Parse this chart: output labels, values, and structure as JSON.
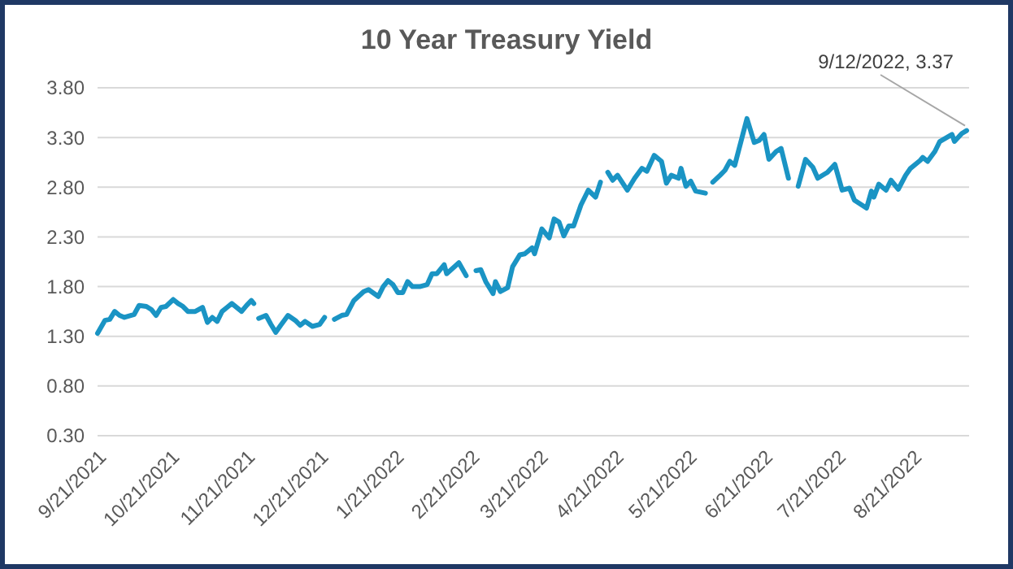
{
  "chart_data": {
    "type": "line",
    "title": "10 Year Treasury Yield",
    "x": [
      "2021-09-21",
      "2021-09-24",
      "2021-09-26",
      "2021-09-28",
      "2021-09-30",
      "2021-10-02",
      "2021-10-06",
      "2021-10-08",
      "2021-10-11",
      "2021-10-13",
      "2021-10-15",
      "2021-10-17",
      "2021-10-19",
      "2021-10-22",
      "2021-10-24",
      "2021-10-26",
      "2021-10-28",
      "2021-10-31",
      "2021-11-03",
      "2021-11-05",
      "2021-11-07",
      "2021-11-09",
      "2021-11-11",
      "2021-11-13",
      "2021-11-15",
      "2021-11-19",
      "2021-11-21",
      "2021-11-23",
      "2021-11-24",
      "2021-11-25",
      "2021-11-26",
      "2021-11-29",
      "2021-12-01",
      "2021-12-03",
      "2021-12-05",
      "2021-12-08",
      "2021-12-11",
      "2021-12-13",
      "2021-12-15",
      "2021-12-18",
      "2021-12-21",
      "2021-12-23",
      "2021-12-26",
      "2021-12-27",
      "2021-12-30",
      "2022-01-01",
      "2022-01-04",
      "2022-01-08",
      "2022-01-10",
      "2022-01-14",
      "2022-01-16",
      "2022-01-18",
      "2022-01-20",
      "2022-01-22",
      "2022-01-24",
      "2022-01-26",
      "2022-01-28",
      "2022-01-31",
      "2022-02-03",
      "2022-02-05",
      "2022-02-07",
      "2022-02-10",
      "2022-02-11",
      "2022-02-16",
      "2022-02-19",
      "2022-02-20",
      "2022-02-23",
      "2022-02-25",
      "2022-02-27",
      "2022-03-02",
      "2022-03-03",
      "2022-03-05",
      "2022-03-08",
      "2022-03-10",
      "2022-03-13",
      "2022-03-15",
      "2022-03-18",
      "2022-03-19",
      "2022-03-22",
      "2022-03-25",
      "2022-03-27",
      "2022-03-29",
      "2022-03-31",
      "2022-04-02",
      "2022-04-04",
      "2022-04-07",
      "2022-04-10",
      "2022-04-13",
      "2022-04-15",
      "2022-04-16",
      "2022-04-18",
      "2022-04-20",
      "2022-04-22",
      "2022-04-26",
      "2022-04-29",
      "2022-05-02",
      "2022-05-04",
      "2022-05-07",
      "2022-05-10",
      "2022-05-12",
      "2022-05-14",
      "2022-05-17",
      "2022-05-18",
      "2022-05-20",
      "2022-05-22",
      "2022-05-24",
      "2022-05-28",
      "2022-05-29",
      "2022-05-31",
      "2022-06-03",
      "2022-06-05",
      "2022-06-07",
      "2022-06-09",
      "2022-06-14",
      "2022-06-17",
      "2022-06-19",
      "2022-06-21",
      "2022-06-23",
      "2022-06-26",
      "2022-06-28",
      "2022-07-01",
      "2022-07-02",
      "2022-07-05",
      "2022-07-08",
      "2022-07-11",
      "2022-07-13",
      "2022-07-17",
      "2022-07-20",
      "2022-07-23",
      "2022-07-26",
      "2022-07-28",
      "2022-08-02",
      "2022-08-04",
      "2022-08-05",
      "2022-08-07",
      "2022-08-10",
      "2022-08-12",
      "2022-08-15",
      "2022-08-18",
      "2022-08-20",
      "2022-08-24",
      "2022-08-25",
      "2022-08-27",
      "2022-08-30",
      "2022-09-01",
      "2022-09-06",
      "2022-09-07",
      "2022-09-10",
      "2022-09-12"
    ],
    "series": [
      {
        "color": "#1a94c4",
        "values": [
          1.33,
          1.46,
          1.47,
          1.55,
          1.51,
          1.49,
          1.52,
          1.61,
          1.6,
          1.57,
          1.51,
          1.59,
          1.6,
          1.67,
          1.63,
          1.6,
          1.55,
          1.55,
          1.59,
          1.44,
          1.49,
          1.45,
          1.55,
          1.59,
          1.63,
          1.55,
          1.61,
          1.66,
          1.63,
          null,
          1.48,
          1.51,
          1.42,
          1.34,
          1.41,
          1.51,
          1.46,
          1.41,
          1.45,
          1.4,
          1.42,
          1.49,
          null,
          1.47,
          1.51,
          1.52,
          1.66,
          1.75,
          1.77,
          1.7,
          1.8,
          1.86,
          1.82,
          1.74,
          1.74,
          1.85,
          1.8,
          1.8,
          1.82,
          1.93,
          1.93,
          2.02,
          1.93,
          2.04,
          1.91,
          null,
          1.96,
          1.97,
          1.85,
          1.73,
          1.85,
          1.75,
          1.79,
          2.0,
          2.12,
          2.13,
          2.19,
          2.13,
          2.38,
          2.29,
          2.48,
          2.45,
          2.31,
          2.41,
          2.41,
          2.62,
          2.77,
          2.7,
          2.85,
          null,
          2.95,
          2.87,
          2.92,
          2.77,
          2.89,
          2.99,
          2.96,
          3.12,
          3.06,
          2.84,
          2.92,
          2.89,
          2.99,
          2.81,
          2.86,
          2.76,
          2.74,
          null,
          2.85,
          2.92,
          2.97,
          3.06,
          3.02,
          3.49,
          3.25,
          3.27,
          3.33,
          3.08,
          3.16,
          3.19,
          2.89,
          null,
          2.81,
          3.08,
          3.0,
          2.89,
          2.95,
          3.03,
          2.77,
          2.79,
          2.67,
          2.59,
          2.76,
          2.7,
          2.83,
          2.77,
          2.87,
          2.78,
          2.92,
          2.99,
          3.07,
          3.1,
          3.06,
          3.16,
          3.26,
          3.33,
          3.26,
          3.34,
          3.37
        ]
      }
    ],
    "xlim": [
      "2021-09-21",
      "2022-09-13"
    ],
    "xticks": [
      {
        "value": "2021-09-21",
        "label": "9/21/2021"
      },
      {
        "value": "2021-10-21",
        "label": "10/21/2021"
      },
      {
        "value": "2021-11-21",
        "label": "11/21/2021"
      },
      {
        "value": "2021-12-21",
        "label": "12/21/2021"
      },
      {
        "value": "2022-01-21",
        "label": "1/21/2022"
      },
      {
        "value": "2022-02-21",
        "label": "2/21/2022"
      },
      {
        "value": "2022-03-21",
        "label": "3/21/2022"
      },
      {
        "value": "2022-04-21",
        "label": "4/21/2022"
      },
      {
        "value": "2022-05-21",
        "label": "5/21/2022"
      },
      {
        "value": "2022-06-21",
        "label": "6/21/2022"
      },
      {
        "value": "2022-07-21",
        "label": "7/21/2022"
      },
      {
        "value": "2022-08-21",
        "label": "8/21/2022"
      }
    ],
    "ylim": [
      0.3,
      3.8
    ],
    "yticks": [
      {
        "value": 0.3,
        "label": "0.30"
      },
      {
        "value": 0.8,
        "label": "0.80"
      },
      {
        "value": 1.3,
        "label": "1.30"
      },
      {
        "value": 1.8,
        "label": "1.80"
      },
      {
        "value": 2.3,
        "label": "2.30"
      },
      {
        "value": 2.8,
        "label": "2.80"
      },
      {
        "value": 3.3,
        "label": "3.30"
      },
      {
        "value": 3.8,
        "label": "3.80"
      }
    ],
    "grid": "y",
    "line_style": "solid",
    "marker": "none",
    "annotations": [
      {
        "text": "9/12/2022, 3.37",
        "x": "2022-09-12",
        "y": 3.37
      }
    ]
  }
}
